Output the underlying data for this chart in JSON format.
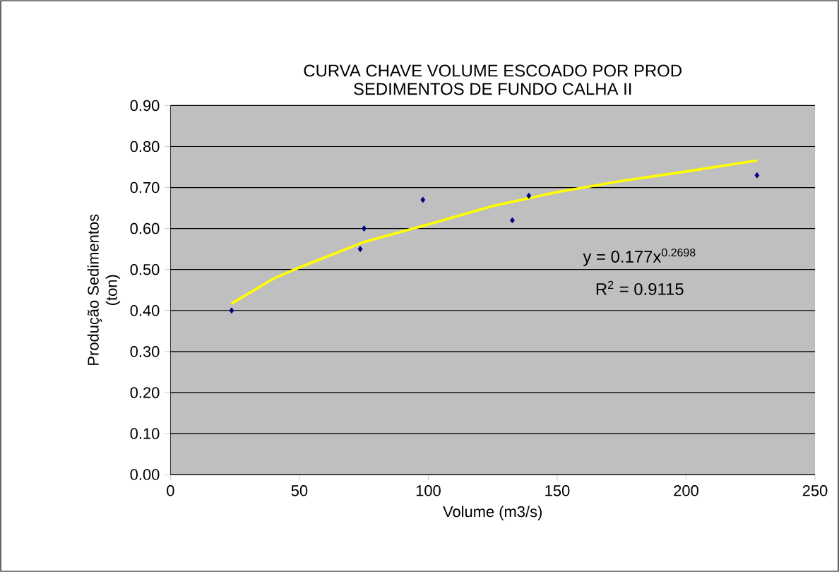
{
  "chart_data": {
    "type": "scatter",
    "title": "CURVA CHAVE VOLUME ESCOADO POR PROD\nSEDIMENTOS DE FUNDO  CALHA II",
    "xlabel": "Volume (m3/s)",
    "ylabel": "Produção Sedimentos\n(ton)",
    "series": [
      {
        "color": "#000080",
        "marker": "diamond",
        "x": [
          23.7,
          73.6,
          75.1,
          97.9,
          132.6,
          139,
          227.5
        ],
        "values": [
          0.4,
          0.55,
          0.6,
          0.67,
          0.62,
          0.68,
          0.73
        ]
      },
      {
        "type": "line",
        "color": "#ffff00",
        "marker": "none",
        "x": [
          23.7,
          40,
          50,
          75,
          100,
          125,
          150,
          175,
          200,
          227.5
        ],
        "values": [
          0.417,
          0.478,
          0.505,
          0.567,
          0.61,
          0.655,
          0.689,
          0.716,
          0.739,
          0.766
        ]
      }
    ],
    "xlim": [
      0,
      250
    ],
    "ylim": [
      0,
      0.9
    ],
    "xticks": [
      0,
      50,
      100,
      150,
      200,
      250
    ],
    "yticks": [
      {
        "value": 0,
        "label": "0.00"
      },
      {
        "value": 0.1,
        "label": "0.10"
      },
      {
        "value": 0.2,
        "label": "0.20"
      },
      {
        "value": 0.3,
        "label": "0.30"
      },
      {
        "value": 0.4,
        "label": "0.40"
      },
      {
        "value": 0.5,
        "label": "0.50"
      },
      {
        "value": 0.6,
        "label": "0.60"
      },
      {
        "value": 0.7,
        "label": "0.70"
      },
      {
        "value": 0.8,
        "label": "0.80"
      },
      {
        "value": 0.9,
        "label": "0.90"
      }
    ],
    "grid": "y",
    "annotations": [
      "y = 0.177x$^{0.2698}$",
      "R$^{2}$ = 0.9115"
    ]
  }
}
